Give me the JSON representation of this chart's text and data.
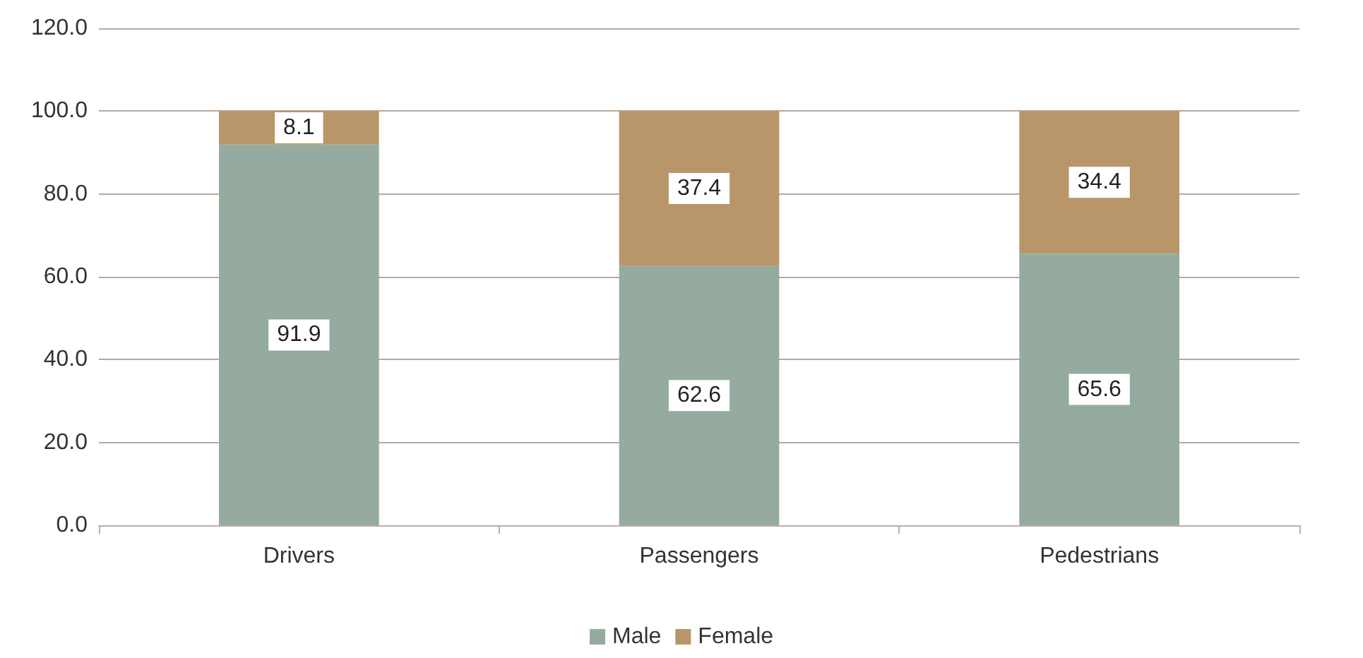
{
  "chart_data": {
    "type": "bar",
    "stacked": true,
    "categories": [
      "Drivers",
      "Passengers",
      "Pedestrians"
    ],
    "series": [
      {
        "name": "Male",
        "color": "#95aba0",
        "values": [
          91.9,
          62.6,
          65.6
        ]
      },
      {
        "name": "Female",
        "color": "#b9966a",
        "values": [
          8.1,
          37.4,
          34.4
        ]
      }
    ],
    "ylim": [
      0,
      120
    ],
    "yticks": [
      {
        "value": 0,
        "label": "0.0"
      },
      {
        "value": 20,
        "label": "20.0"
      },
      {
        "value": 40,
        "label": "40.0"
      },
      {
        "value": 60,
        "label": "60.0"
      },
      {
        "value": 80,
        "label": "80.0"
      },
      {
        "value": 100,
        "label": "100.0"
      },
      {
        "value": 120,
        "label": "120.0"
      }
    ],
    "grid": "y",
    "legend": "bottom",
    "data_labels": true
  }
}
